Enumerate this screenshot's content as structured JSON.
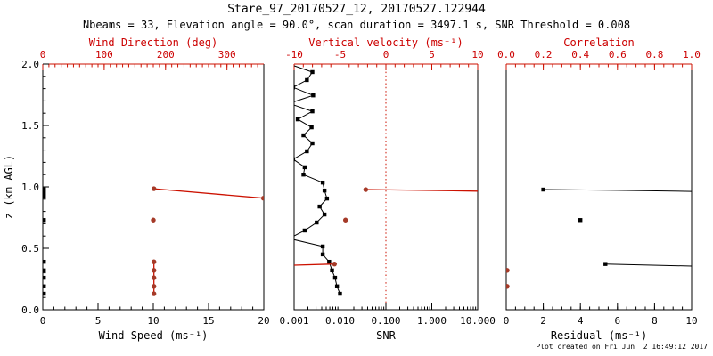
{
  "header": {
    "title": "Stare_97_20170527_12, 20170527.122944",
    "subtitle": "Nbeams = 33, Elevation angle = 90.0°, scan duration = 3497.1 s, SNR Threshold = 0.008"
  },
  "footer": {
    "created": "Plot created on Fri Jun  2 16:49:12 2017"
  },
  "colors": {
    "axis_black": "#000000",
    "red": "#cc1100",
    "red_text": "#cc0000",
    "marker_red": "#a53a28"
  },
  "chart_data": {
    "type": "line",
    "y_axis": {
      "label": "z (km AGL)",
      "range": [
        0,
        2
      ],
      "ticks": [
        0,
        0.5,
        1.0,
        1.5,
        2.0
      ],
      "tick_labels": [
        "0.0",
        "0.5",
        "1.0",
        "1.5",
        "2.0"
      ],
      "minor_step": 0.1
    },
    "panels": [
      {
        "id": "wind",
        "bottom_axis": {
          "title": "Wind Speed (ms⁻¹)",
          "scale": "linear",
          "range": [
            0,
            20
          ],
          "ticks": [
            0,
            5,
            10,
            15,
            20
          ],
          "tick_labels": [
            "0",
            "5",
            "10",
            "15",
            "20"
          ],
          "minor_step": 1,
          "color": "black"
        },
        "top_axis": {
          "title": "Wind Direction (deg)",
          "scale": "linear",
          "range": [
            0,
            360
          ],
          "ticks": [
            0,
            100,
            200,
            300
          ],
          "tick_labels": [
            "0",
            "100",
            "200",
            "300"
          ],
          "minor_step": 10,
          "color": "red"
        },
        "reflines": [],
        "series": [
          {
            "name": "wind-speed",
            "axis": "bottom",
            "color": "black",
            "marker": "square",
            "points": [
              [
                0.1,
                0.98
              ],
              [
                0.1,
                0.95
              ],
              [
                0.1,
                0.92
              ],
              [
                0.1,
                0.73
              ],
              [
                0.1,
                0.39
              ],
              [
                0.1,
                0.32
              ],
              [
                0.1,
                0.26
              ],
              [
                0.1,
                0.19
              ],
              [
                0.1,
                0.13
              ]
            ],
            "lines": []
          },
          {
            "name": "wind-direction",
            "axis": "top",
            "color": "red",
            "marker": "circle",
            "points": [
              [
                181,
                0.985
              ],
              [
                180,
                0.73
              ],
              [
                181,
                0.39
              ],
              [
                181,
                0.32
              ],
              [
                181,
                0.26
              ],
              [
                181,
                0.19
              ],
              [
                181,
                0.13
              ],
              [
                359.5,
                0.908
              ]
            ],
            "lines": [
              [
                [
                  181,
                  0.985
                ],
                [
                  359.5,
                  0.908
                ]
              ],
              [
                [
                  181,
                  0.39
                ],
                [
                  181,
                  0.13
                ]
              ]
            ]
          }
        ]
      },
      {
        "id": "snr",
        "bottom_axis": {
          "title": "SNR",
          "scale": "log",
          "range": [
            0.001,
            10
          ],
          "ticks": [
            0.001,
            0.01,
            0.1,
            1,
            10
          ],
          "tick_labels": [
            "0.001",
            "0.010",
            "0.100",
            "1.000",
            "10.000"
          ],
          "color": "black"
        },
        "top_axis": {
          "title": "Vertical velocity (ms⁻¹)",
          "scale": "linear",
          "range": [
            -10,
            10
          ],
          "ticks": [
            -10,
            -5,
            0,
            5,
            10
          ],
          "tick_labels": [
            "-10",
            "-5",
            "0",
            "5",
            "10"
          ],
          "minor_step": 1,
          "color": "red"
        },
        "reflines": [
          {
            "axis": "top",
            "value": 0,
            "style": "dotted",
            "color": "red"
          }
        ],
        "series": [
          {
            "name": "snr-profile",
            "axis": "bottom",
            "color": "black",
            "marker": "square",
            "points": [
              [
                0.0025,
                1.935
              ],
              [
                0.0019,
                1.87
              ],
              [
                0.00095,
                1.81
              ],
              [
                0.0026,
                1.745
              ],
              [
                0.0025,
                1.615
              ],
              [
                0.0012,
                1.55
              ],
              [
                0.0024,
                1.485
              ],
              [
                0.0016,
                1.42
              ],
              [
                0.0025,
                1.355
              ],
              [
                0.0019,
                1.29
              ],
              [
                0.00095,
                1.225
              ],
              [
                0.0017,
                1.16
              ],
              [
                0.0016,
                1.1
              ],
              [
                0.0042,
                1.035
              ],
              [
                0.0046,
                0.97
              ],
              [
                0.0052,
                0.905
              ],
              [
                0.0036,
                0.84
              ],
              [
                0.0046,
                0.775
              ],
              [
                0.0031,
                0.71
              ],
              [
                0.0017,
                0.645
              ],
              [
                0.0042,
                0.515
              ],
              [
                0.0042,
                0.45
              ],
              [
                0.0058,
                0.39
              ],
              [
                0.0067,
                0.32
              ],
              [
                0.0078,
                0.26
              ],
              [
                0.0086,
                0.19
              ],
              [
                0.01,
                0.13
              ]
            ],
            "lines": [
              [
                [
                  0.00078,
                  2.0
                ],
                [
                  0.0025,
                  1.935
                ],
                [
                  0.0019,
                  1.87
                ],
                [
                  0.00095,
                  1.81
                ],
                [
                  0.0026,
                  1.745
                ],
                [
                  0.00078,
                  1.68
                ],
                [
                  0.0025,
                  1.615
                ],
                [
                  0.0012,
                  1.55
                ],
                [
                  0.0024,
                  1.485
                ],
                [
                  0.0016,
                  1.42
                ],
                [
                  0.0025,
                  1.355
                ],
                [
                  0.0019,
                  1.29
                ],
                [
                  0.00095,
                  1.225
                ],
                [
                  0.0017,
                  1.16
                ],
                [
                  0.0016,
                  1.1
                ],
                [
                  0.0042,
                  1.035
                ],
                [
                  0.0046,
                  0.97
                ],
                [
                  0.0052,
                  0.905
                ],
                [
                  0.0036,
                  0.84
                ],
                [
                  0.0046,
                  0.775
                ],
                [
                  0.0031,
                  0.71
                ],
                [
                  0.0017,
                  0.645
                ],
                [
                  0.00078,
                  0.58
                ],
                [
                  0.0042,
                  0.515
                ],
                [
                  0.0042,
                  0.45
                ],
                [
                  0.0058,
                  0.39
                ],
                [
                  0.0067,
                  0.32
                ],
                [
                  0.0078,
                  0.26
                ],
                [
                  0.0086,
                  0.19
                ],
                [
                  0.01,
                  0.13
                ]
              ]
            ]
          },
          {
            "name": "vertical-velocity",
            "axis": "top",
            "color": "red",
            "marker": "circle",
            "points": [
              [
                -2.2,
                0.978
              ],
              [
                -4.4,
                0.73
              ],
              [
                -5.6,
                0.372
              ]
            ],
            "lines": [
              [
                [
                  -2.2,
                  0.978
                ],
                [
                  4,
                  0.972
                ],
                [
                  10,
                  0.965
                ]
              ],
              [
                [
                  -10,
                  0.362
                ],
                [
                  -5.6,
                  0.372
                ]
              ]
            ]
          }
        ]
      },
      {
        "id": "residual",
        "bottom_axis": {
          "title": "Residual (ms⁻¹)",
          "scale": "linear",
          "range": [
            0,
            10
          ],
          "ticks": [
            0,
            2,
            4,
            6,
            8,
            10
          ],
          "tick_labels": [
            "0",
            "2",
            "4",
            "6",
            "8",
            "10"
          ],
          "minor_step": 0.5,
          "color": "black"
        },
        "top_axis": {
          "title": "Correlation",
          "scale": "linear",
          "range": [
            0,
            1
          ],
          "ticks": [
            0,
            0.2,
            0.4,
            0.6,
            0.8,
            1.0
          ],
          "tick_labels": [
            "0.0",
            "0.2",
            "0.4",
            "0.6",
            "0.8",
            "1.0"
          ],
          "minor_step": 0.05,
          "color": "red"
        },
        "reflines": [],
        "series": [
          {
            "name": "residual-profile",
            "axis": "bottom",
            "color": "black",
            "marker": "square",
            "points": [
              [
                2.0,
                0.978
              ],
              [
                4.0,
                0.73
              ],
              [
                5.35,
                0.372
              ]
            ],
            "lines": [
              [
                [
                  2.0,
                  0.978
                ],
                [
                  6,
                  0.972
                ],
                [
                  10,
                  0.963
                ]
              ],
              [
                [
                  5.35,
                  0.372
                ],
                [
                  10,
                  0.355
                ]
              ]
            ]
          },
          {
            "name": "correlation",
            "axis": "top",
            "color": "red",
            "marker": "circle",
            "points": [
              [
                0.005,
                0.32
              ],
              [
                0.005,
                0.19
              ]
            ],
            "lines": []
          }
        ]
      }
    ]
  }
}
